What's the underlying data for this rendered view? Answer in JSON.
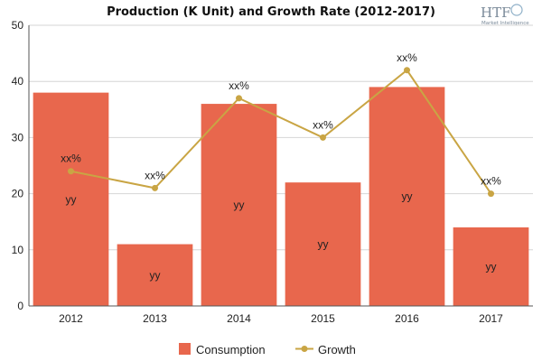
{
  "chart_data": {
    "type": "bar",
    "title": "Production (K Unit) and Growth Rate (2012-2017)",
    "categories": [
      "2012",
      "2013",
      "2014",
      "2015",
      "2016",
      "2017"
    ],
    "series": [
      {
        "name": "Consumption",
        "kind": "bar",
        "color": "#e8674d",
        "values": [
          38,
          11,
          36,
          22,
          39,
          14
        ],
        "labels": [
          "yy",
          "yy",
          "yy",
          "yy",
          "yy",
          "yy"
        ]
      },
      {
        "name": "Growth",
        "kind": "line",
        "color": "#c9a544",
        "values": [
          24,
          21,
          37,
          30,
          42,
          20
        ],
        "labels": [
          "xx%",
          "xx%",
          "xx%",
          "xx%",
          "xx%",
          "xx%"
        ]
      }
    ],
    "ylim": [
      0,
      50
    ],
    "yticks": [
      0,
      10,
      20,
      30,
      40,
      50
    ],
    "xlabel": "",
    "ylabel": "",
    "grid": true,
    "legend": "bottom"
  },
  "logo": {
    "text": "HTF",
    "subtext": "Market Intelligence"
  }
}
